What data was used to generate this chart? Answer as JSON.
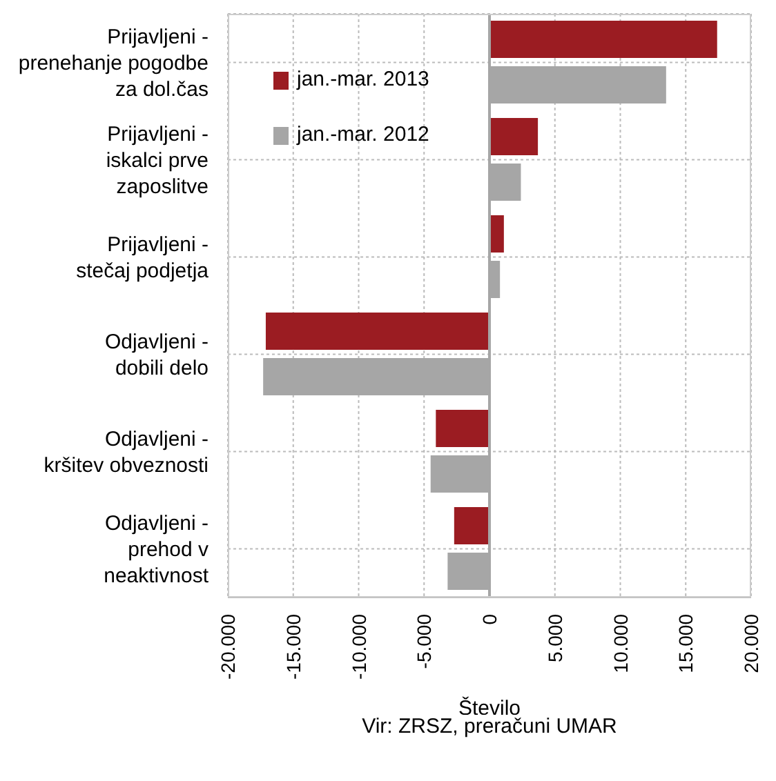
{
  "chart_data": {
    "type": "bar",
    "orientation": "horizontal",
    "xlabel": "Število",
    "categories": [
      "Prijavljeni - prenehanje pogodbe za dol.čas",
      "Prijavljeni - iskalci prve zaposlitve",
      "Prijavljeni - stečaj podjetja",
      "Odjavljeni - dobili delo",
      "Odjavljeni - kršitev obveznosti",
      "Odjavljeni - prehod v neaktivnost"
    ],
    "series": [
      {
        "name": "jan.-mar. 2013",
        "color": "#9b1c22",
        "values": [
          17400,
          3700,
          1100,
          -17100,
          -4100,
          -2700
        ]
      },
      {
        "name": "jan.-mar. 2012",
        "color": "#a6a6a6",
        "values": [
          13500,
          2400,
          800,
          -17300,
          -4500,
          -3200
        ]
      }
    ],
    "xlim": [
      -20000,
      20000
    ],
    "xticks": [
      {
        "value": -20000,
        "label": "-20.000"
      },
      {
        "value": -15000,
        "label": "-15.000"
      },
      {
        "value": -10000,
        "label": "-10.000"
      },
      {
        "value": -5000,
        "label": "-5.000"
      },
      0,
      {
        "value": 5000,
        "label": "5.000"
      },
      {
        "value": 10000,
        "label": "10.000"
      },
      {
        "value": 15000,
        "label": "15.000"
      },
      {
        "value": 20000,
        "label": "20.000"
      }
    ],
    "grid": true,
    "legend": "top left",
    "annotations": [
      "Vir: ZRSZ, preračuni UMAR"
    ]
  }
}
